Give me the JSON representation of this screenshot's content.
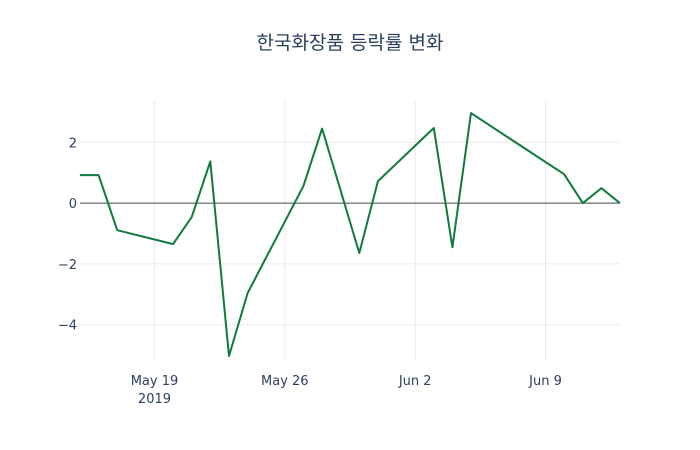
{
  "chart_data": {
    "type": "line",
    "title": "한국화장품 등락률 변화",
    "xlabel": "",
    "ylabel": "",
    "x": [
      "2019-05-15",
      "2019-05-16",
      "2019-05-17",
      "2019-05-20",
      "2019-05-21",
      "2019-05-22",
      "2019-05-23",
      "2019-05-24",
      "2019-05-27",
      "2019-05-28",
      "2019-05-30",
      "2019-05-31",
      "2019-06-03",
      "2019-06-04",
      "2019-06-05",
      "2019-06-10",
      "2019-06-11",
      "2019-06-12",
      "2019-06-13"
    ],
    "series": [
      {
        "name": "등락률",
        "color": "#0e7a3c",
        "values": [
          0.92,
          0.92,
          -0.89,
          -1.35,
          -0.46,
          1.37,
          -5.03,
          -2.96,
          0.56,
          2.45,
          -1.64,
          0.72,
          2.47,
          -1.45,
          2.96,
          0.95,
          0.0,
          0.49,
          0.0
        ]
      }
    ],
    "x_ticks": [
      {
        "date": "2019-05-19",
        "label": "May 19",
        "sublabel": "2019"
      },
      {
        "date": "2019-05-26",
        "label": "May 26",
        "sublabel": ""
      },
      {
        "date": "2019-06-02",
        "label": "Jun 2",
        "sublabel": ""
      },
      {
        "date": "2019-06-09",
        "label": "Jun 9",
        "sublabel": ""
      }
    ],
    "y_ticks": [
      2,
      0,
      -2,
      -4
    ],
    "y_tick_labels": [
      "2",
      "0",
      "−2",
      "−4"
    ],
    "ylim": [
      -5.16,
      3.39
    ],
    "xlim": [
      "2019-05-15",
      "2019-06-13"
    ],
    "grid": true,
    "zero_line": true,
    "legend": "none"
  }
}
